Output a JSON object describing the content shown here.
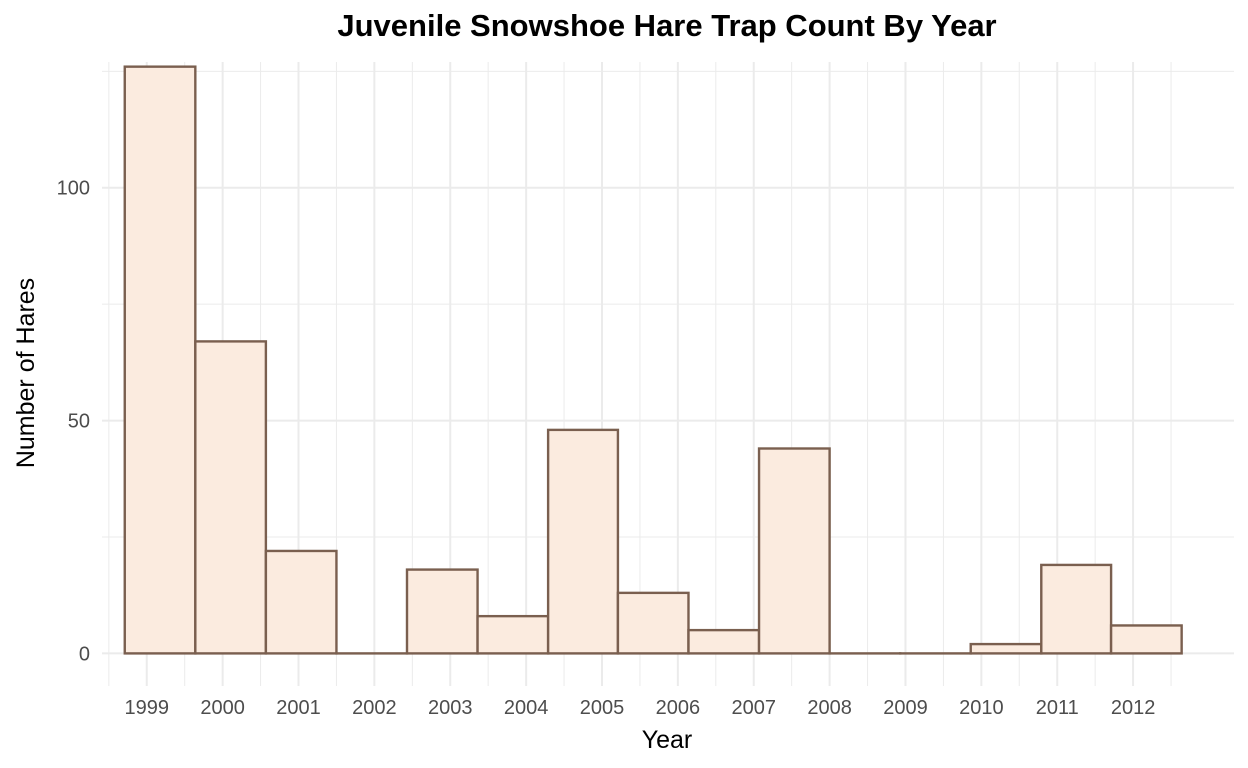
{
  "chart_data": {
    "type": "bar",
    "title": "Juvenile Snowshoe Hare Trap Count By Year",
    "xlabel": "Year",
    "ylabel": "Number of Hares",
    "x_ticks": [
      "1999",
      "2000",
      "2001",
      "2002",
      "2003",
      "2004",
      "2005",
      "2006",
      "2007",
      "2008",
      "2009",
      "2010",
      "2011",
      "2012"
    ],
    "y_ticks": [
      0,
      50,
      100
    ],
    "ylim": [
      -7,
      127
    ],
    "xlim": [
      1998.41,
      2013.33
    ],
    "bins": [
      {
        "start": 1998.71,
        "end": 1999.64,
        "value": 126
      },
      {
        "start": 1999.64,
        "end": 2000.57,
        "value": 67
      },
      {
        "start": 2000.57,
        "end": 2001.5,
        "value": 22
      },
      {
        "start": 2001.5,
        "end": 2002.43,
        "value": 0
      },
      {
        "start": 2002.43,
        "end": 2003.36,
        "value": 18
      },
      {
        "start": 2003.36,
        "end": 2004.29,
        "value": 8
      },
      {
        "start": 2004.29,
        "end": 2005.21,
        "value": 48
      },
      {
        "start": 2005.21,
        "end": 2006.14,
        "value": 13
      },
      {
        "start": 2006.14,
        "end": 2007.07,
        "value": 5
      },
      {
        "start": 2007.07,
        "end": 2008.0,
        "value": 44
      },
      {
        "start": 2008.0,
        "end": 2008.93,
        "value": 0
      },
      {
        "start": 2008.93,
        "end": 2009.86,
        "value": 0
      },
      {
        "start": 2009.86,
        "end": 2010.79,
        "value": 2
      },
      {
        "start": 2010.79,
        "end": 2011.71,
        "value": 19
      },
      {
        "start": 2011.71,
        "end": 2012.64,
        "value": 6
      }
    ],
    "fill_color": "#fbebdf",
    "edge_color": "#7a5f4f",
    "grid": true,
    "legend": "none"
  }
}
